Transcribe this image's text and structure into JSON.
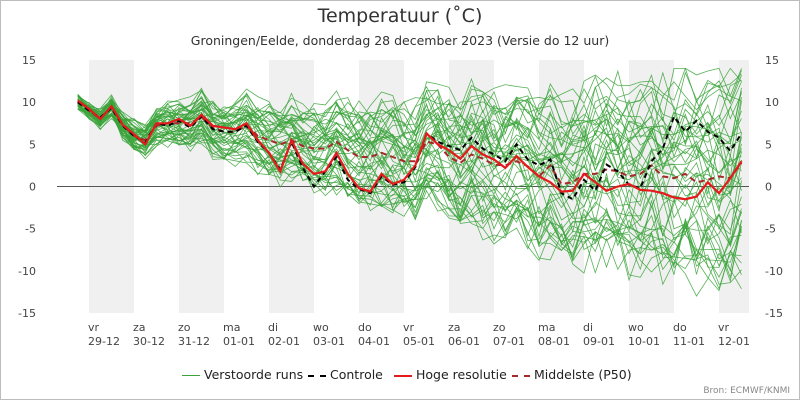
{
  "chart_data": {
    "type": "line",
    "title": "Temperatuur (˚C)",
    "subtitle": "Groningen/Eelde, donderdag 28 december 2023 (Versie do 12 uur)",
    "source": "Bron: ECMWF/KNMI",
    "ylim": [
      -15,
      15
    ],
    "y_ticks": [
      15,
      10,
      5,
      0,
      -5,
      -10,
      -15
    ],
    "grid": false,
    "legend_position": "bottom",
    "x_range_days": [
      0,
      15
    ],
    "x_tick_labels": [
      {
        "day": 0,
        "dow": "vr",
        "date": "29-12"
      },
      {
        "day": 1,
        "dow": "za",
        "date": "30-12"
      },
      {
        "day": 2,
        "dow": "zo",
        "date": "31-12"
      },
      {
        "day": 3,
        "dow": "ma",
        "date": "01-01"
      },
      {
        "day": 4,
        "dow": "di",
        "date": "02-01"
      },
      {
        "day": 5,
        "dow": "wo",
        "date": "03-01"
      },
      {
        "day": 6,
        "dow": "do",
        "date": "04-01"
      },
      {
        "day": 7,
        "dow": "vr",
        "date": "05-01"
      },
      {
        "day": 8,
        "dow": "za",
        "date": "06-01"
      },
      {
        "day": 9,
        "dow": "zo",
        "date": "07-01"
      },
      {
        "day": 10,
        "dow": "ma",
        "date": "08-01"
      },
      {
        "day": 11,
        "dow": "di",
        "date": "09-01"
      },
      {
        "day": 12,
        "dow": "wo",
        "date": "10-01"
      },
      {
        "day": 13,
        "dow": "do",
        "date": "11-01"
      },
      {
        "day": 14,
        "dow": "vr",
        "date": "12-01"
      }
    ],
    "shaded_days": [
      0,
      2,
      4,
      6,
      8,
      10,
      12,
      14
    ],
    "colors": {
      "ensemble": "#3aa33a",
      "control": "#000000",
      "hires": "#e41a1c",
      "median": "#a52a2a",
      "shade": "#f0f0f0"
    },
    "legend": {
      "ensemble": "Verstoorde runs",
      "control": "Controle",
      "hires": "Hoge resolutie",
      "median": "Middelste (P50)"
    },
    "series": [
      {
        "name": "Hoge resolutie",
        "x": [
          -0.25,
          0,
          0.25,
          0.5,
          0.75,
          1,
          1.25,
          1.5,
          1.75,
          2,
          2.25,
          2.5,
          2.75,
          3,
          3.25,
          3.5,
          3.75,
          4,
          4.25,
          4.5,
          4.75,
          5,
          5.25,
          5.5,
          5.75,
          6,
          6.25,
          6.5,
          6.75,
          7,
          7.25,
          7.5,
          7.75,
          8,
          8.25,
          8.5,
          8.75,
          9,
          9.25,
          9.5,
          9.75,
          10,
          10.25,
          10.5,
          10.75,
          11,
          11.25,
          11.5,
          11.75,
          12,
          12.25,
          12.5,
          12.75,
          13,
          13.25,
          13.5,
          13.75,
          14,
          14.25,
          14.5
        ],
        "values": [
          10.2,
          9.2,
          8,
          9.5,
          7.3,
          6.2,
          5,
          7.5,
          7.5,
          8,
          7.2,
          8.5,
          7.2,
          7,
          6.8,
          7.5,
          5.5,
          4,
          1.8,
          5.5,
          2.7,
          1.5,
          1.8,
          4,
          1.5,
          -0.2,
          -0.6,
          1.5,
          0.3,
          0.8,
          2.5,
          6.3,
          5,
          4.3,
          3.3,
          4.8,
          3.8,
          3.2,
          2.2,
          3.6,
          2.3,
          1.2,
          0.5,
          -0.6,
          -0.5,
          1.5,
          0.5,
          -0.5,
          0,
          0.3,
          -0.4,
          -0.5,
          -0.8,
          -1.3,
          -1.5,
          -1.2,
          0.5,
          -0.8,
          1,
          3
        ]
      },
      {
        "name": "Controle",
        "x": [
          -0.25,
          0,
          0.25,
          0.5,
          0.75,
          1,
          1.25,
          1.5,
          1.75,
          2,
          2.25,
          2.5,
          2.75,
          3,
          3.25,
          3.5,
          3.75,
          4,
          4.25,
          4.5,
          4.75,
          5,
          5.25,
          5.5,
          5.75,
          6,
          6.25,
          6.5,
          6.75,
          7,
          7.25,
          7.5,
          7.75,
          8,
          8.25,
          8.5,
          8.75,
          9,
          9.25,
          9.5,
          9.75,
          10,
          10.25,
          10.5,
          10.75,
          11,
          11.25,
          11.5,
          11.75,
          12,
          12.25,
          12.5,
          12.75,
          13,
          13.25,
          13.5,
          13.75,
          14,
          14.25,
          14.5
        ],
        "values": [
          10,
          9,
          8.2,
          9.3,
          7.2,
          6,
          5.2,
          7.5,
          7.2,
          7.8,
          7,
          8.3,
          6.8,
          6.5,
          6.5,
          7.2,
          5.3,
          4,
          2,
          5.3,
          2.2,
          0,
          1.8,
          3.5,
          0.8,
          -0.3,
          -0.8,
          1.2,
          0.2,
          0.5,
          2.3,
          6.3,
          5.3,
          4.8,
          4.3,
          5.8,
          4.5,
          3.8,
          3,
          5,
          3.2,
          2.5,
          3.2,
          -0.8,
          -1.5,
          0.8,
          -0.5,
          2.6,
          1.8,
          0.2,
          -0.2,
          3,
          4.5,
          8.3,
          6.5,
          7.8,
          6.5,
          5.8,
          4.2,
          6.3
        ]
      },
      {
        "name": "Middelste (P50)",
        "x": [
          -0.25,
          0,
          0.25,
          0.5,
          0.75,
          1,
          1.25,
          1.5,
          1.75,
          2,
          2.25,
          2.5,
          2.75,
          3,
          3.25,
          3.5,
          3.75,
          4,
          4.25,
          4.5,
          4.75,
          5,
          5.25,
          5.5,
          5.75,
          6,
          6.25,
          6.5,
          6.75,
          7,
          7.25,
          7.5,
          7.75,
          8,
          8.25,
          8.5,
          8.75,
          9,
          9.25,
          9.5,
          9.75,
          10,
          10.25,
          10.5,
          10.75,
          11,
          11.25,
          11.5,
          11.75,
          12,
          12.25,
          12.5,
          12.75,
          13,
          13.25,
          13.5,
          13.75,
          14,
          14.25,
          14.5
        ],
        "values": [
          10,
          9,
          8,
          9.5,
          7.3,
          6,
          5.5,
          7.2,
          7.5,
          7.5,
          7.5,
          8.2,
          7,
          6.5,
          6.5,
          7.2,
          6,
          5.5,
          5,
          5.5,
          4.8,
          4.5,
          4.5,
          5.3,
          4.3,
          3.5,
          3.5,
          4,
          3.5,
          3,
          3,
          5.3,
          5,
          3.5,
          2.8,
          3.8,
          3.3,
          2.6,
          2.5,
          3,
          2.4,
          1.2,
          2.5,
          0.3,
          0.5,
          1.5,
          1.5,
          2,
          1.8,
          1.2,
          1.5,
          2.5,
          1.2,
          1,
          1.5,
          0.5,
          0.8,
          1.2,
          1,
          2.8
        ]
      }
    ],
    "ensemble_members": 50
  }
}
